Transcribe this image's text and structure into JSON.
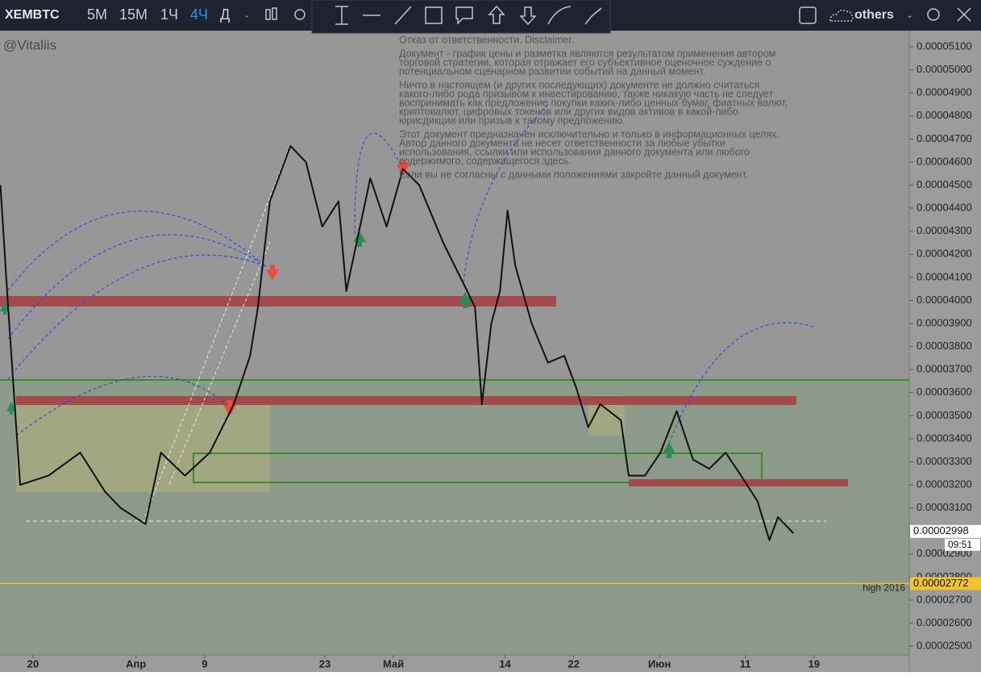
{
  "toolbar": {
    "symbol": "XEMBTC",
    "intervals": [
      "5M",
      "15M",
      "1Ч",
      "4Ч",
      "Д"
    ],
    "active_interval": 3,
    "others": "others"
  },
  "disclaimer": [
    [
      "Отказ от ответственности. Disclaimer."
    ],
    [
      "Документ - график цены и разметка являются результатом применения автором",
      "торговой стратегии, которая отражает его субъективное оценочное суждение о",
      "потенциальном сценарном развитии событий на данный момент."
    ],
    [
      "Ничто в настоящем (и других последующих) документе не должно считаться",
      "какого-либо рода призывом к инвестированию, также никакую часть не следует",
      "воспринимать как предложение покупки каких-либо ценных бумаг, фиатных валют,",
      "криптовалют, цифровых токенов или других видов активов в какой-либо",
      "юрисдикции или призыв к такому предложению."
    ],
    [
      "Этот документ предназначен исключительно и только в информационных целях.",
      "Автор данного документа не несет ответственности за любые убытки",
      "использования, ссылки или использования данного документа или любого",
      "содержимого, содержащегося здесь."
    ],
    [
      "Если вы не согласны с данными положениями закройте данный документ."
    ]
  ],
  "chart_data": {
    "type": "line",
    "author": "@Vitaliis",
    "color": "#111111",
    "x": [
      -3.8,
      -2.9,
      -1.5,
      1.8,
      5.5,
      8.4,
      10.2,
      13.1,
      14.9,
      17.7,
      20.6,
      23.4,
      25.3,
      26.2,
      27.6,
      30.0,
      31.8,
      33.7,
      35.6,
      36.5,
      39.3,
      41.2,
      43.1,
      45.0,
      47.8,
      50.6,
      51.5,
      52.3,
      53.4,
      54.4,
      55.3,
      56.2,
      58.1,
      60.0,
      61.9,
      63.3,
      64.7,
      66.1,
      68.5,
      69.4,
      71.3,
      73.1,
      75.0,
      76.9,
      78.8,
      80.7,
      82.5,
      84.4,
      85.8,
      86.8,
      88.6
    ],
    "values": [
      4.5e-05,
      3.97e-05,
      3.2e-05,
      3.24e-05,
      3.34e-05,
      3.17e-05,
      3.1e-05,
      3.03e-05,
      3.34e-05,
      3.24e-05,
      3.34e-05,
      3.55e-05,
      3.76e-05,
      3.97e-05,
      4.43e-05,
      4.67e-05,
      4.6e-05,
      4.32e-05,
      4.43e-05,
      4.04e-05,
      4.53e-05,
      4.32e-05,
      4.57e-05,
      4.5e-05,
      4.25e-05,
      4.04e-05,
      3.97e-05,
      3.55e-05,
      3.9e-05,
      4.04e-05,
      4.39e-05,
      4.15e-05,
      3.9e-05,
      3.73e-05,
      3.76e-05,
      3.62e-05,
      3.45e-05,
      3.55e-05,
      3.48e-05,
      3.24e-05,
      3.24e-05,
      3.34e-05,
      3.52e-05,
      3.31e-05,
      3.27e-05,
      3.34e-05,
      3.24e-05,
      3.13e-05,
      2.96e-05,
      3.06e-05,
      2.99e-05
    ],
    "xlim": [
      -3.85,
      102.1
    ],
    "xticks": [
      {
        "value": 0,
        "label": "20"
      },
      {
        "value": 12,
        "label": "Апр"
      },
      {
        "value": 20,
        "label": "9"
      },
      {
        "value": 34,
        "label": "23"
      },
      {
        "value": 42,
        "label": "Май"
      },
      {
        "value": 55,
        "label": "14"
      },
      {
        "value": 63,
        "label": "22"
      },
      {
        "value": 73,
        "label": "Июн"
      },
      {
        "value": 83,
        "label": "11"
      },
      {
        "value": 91,
        "label": "19"
      }
    ],
    "ylim": [
      2.462e-05,
      5.17e-05
    ],
    "yticks": [
      {
        "value": 2.5e-05,
        "label": "0.00002500"
      },
      {
        "value": 2.6e-05,
        "label": "0.00002600"
      },
      {
        "value": 2.7e-05,
        "label": "0.00002700"
      },
      {
        "value": 2.8e-05,
        "label": "0.00002800"
      },
      {
        "value": 2.9e-05,
        "label": "0.00002900"
      },
      {
        "value": 3e-05,
        "label": "0.00003000"
      },
      {
        "value": 3.1e-05,
        "label": "0.00003100"
      },
      {
        "value": 3.2e-05,
        "label": "0.00003200"
      },
      {
        "value": 3.3e-05,
        "label": "0.00003300"
      },
      {
        "value": 3.4e-05,
        "label": "0.00003400"
      },
      {
        "value": 3.5e-05,
        "label": "0.00003500"
      },
      {
        "value": 3.6e-05,
        "label": "0.00003600"
      },
      {
        "value": 3.7e-05,
        "label": "0.00003700"
      },
      {
        "value": 3.8e-05,
        "label": "0.00003800"
      },
      {
        "value": 3.9e-05,
        "label": "0.00003900"
      },
      {
        "value": 4e-05,
        "label": "0.00004000"
      },
      {
        "value": 4.1e-05,
        "label": "0.00004100"
      },
      {
        "value": 4.2e-05,
        "label": "0.00004200"
      },
      {
        "value": 4.3e-05,
        "label": "0.00004300"
      },
      {
        "value": 4.4e-05,
        "label": "0.00004400"
      },
      {
        "value": 4.5e-05,
        "label": "0.00004500"
      },
      {
        "value": 4.6e-05,
        "label": "0.00004600"
      },
      {
        "value": 4.7e-05,
        "label": "0.00004700"
      },
      {
        "value": 4.8e-05,
        "label": "0.00004800"
      },
      {
        "value": 4.9e-05,
        "label": "0.00004900"
      },
      {
        "value": 5e-05,
        "label": "0.00005000"
      },
      {
        "value": 5.1e-05,
        "label": "0.00005100"
      }
    ],
    "current_price": 2.998e-05,
    "countdown": "09:51",
    "level": {
      "value": 2.772e-05,
      "label": "high 2016",
      "color": "#f2c230"
    }
  }
}
